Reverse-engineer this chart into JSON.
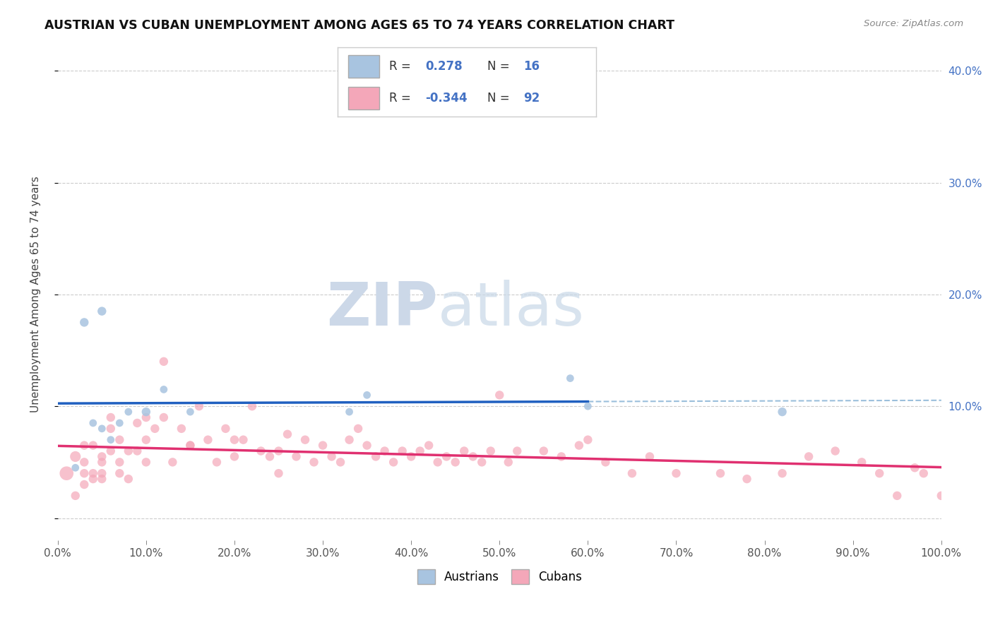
{
  "title": "AUSTRIAN VS CUBAN UNEMPLOYMENT AMONG AGES 65 TO 74 YEARS CORRELATION CHART",
  "source": "Source: ZipAtlas.com",
  "ylabel": "Unemployment Among Ages 65 to 74 years",
  "xlim": [
    0,
    1.0
  ],
  "ylim": [
    -0.02,
    0.42
  ],
  "xticks": [
    0.0,
    0.1,
    0.2,
    0.3,
    0.4,
    0.5,
    0.6,
    0.7,
    0.8,
    0.9,
    1.0
  ],
  "xticklabels": [
    "0.0%",
    "10.0%",
    "20.0%",
    "30.0%",
    "40.0%",
    "50.0%",
    "60.0%",
    "70.0%",
    "80.0%",
    "90.0%",
    "100.0%"
  ],
  "yticks": [
    0.0,
    0.1,
    0.2,
    0.3,
    0.4
  ],
  "yticklabels_left": [
    "",
    "",
    "",
    "",
    ""
  ],
  "yticklabels_right": [
    "",
    "10.0%",
    "20.0%",
    "30.0%",
    "40.0%"
  ],
  "austrian_R": 0.278,
  "austrian_N": 16,
  "cuban_R": -0.344,
  "cuban_N": 92,
  "austrian_color": "#a8c4e0",
  "cuban_color": "#f4a7b9",
  "trendline_austrian_color": "#2060c0",
  "trendline_cuban_color": "#e03070",
  "dashed_line_color": "#90b8d8",
  "background_color": "#ffffff",
  "grid_color": "#cccccc",
  "watermark_color": "#ccd8e8",
  "legend_label_austrian": "Austrians",
  "legend_label_cuban": "Cubans",
  "austrian_x": [
    0.02,
    0.03,
    0.04,
    0.05,
    0.05,
    0.06,
    0.07,
    0.08,
    0.1,
    0.12,
    0.15,
    0.33,
    0.35,
    0.58,
    0.6,
    0.82
  ],
  "austrian_y": [
    0.045,
    0.175,
    0.085,
    0.08,
    0.185,
    0.07,
    0.085,
    0.095,
    0.095,
    0.115,
    0.095,
    0.095,
    0.11,
    0.125,
    0.1,
    0.095
  ],
  "austrian_size": [
    60,
    80,
    60,
    60,
    80,
    60,
    60,
    60,
    80,
    60,
    60,
    60,
    60,
    60,
    60,
    80
  ],
  "cuban_x": [
    0.01,
    0.02,
    0.02,
    0.03,
    0.03,
    0.03,
    0.03,
    0.04,
    0.04,
    0.04,
    0.05,
    0.05,
    0.05,
    0.05,
    0.06,
    0.06,
    0.06,
    0.07,
    0.07,
    0.07,
    0.08,
    0.08,
    0.09,
    0.09,
    0.1,
    0.1,
    0.1,
    0.11,
    0.12,
    0.12,
    0.13,
    0.14,
    0.15,
    0.15,
    0.16,
    0.17,
    0.18,
    0.19,
    0.2,
    0.2,
    0.21,
    0.22,
    0.23,
    0.24,
    0.25,
    0.25,
    0.26,
    0.27,
    0.28,
    0.29,
    0.3,
    0.31,
    0.32,
    0.33,
    0.34,
    0.35,
    0.36,
    0.37,
    0.38,
    0.39,
    0.4,
    0.41,
    0.42,
    0.43,
    0.44,
    0.45,
    0.46,
    0.47,
    0.48,
    0.49,
    0.5,
    0.51,
    0.52,
    0.55,
    0.57,
    0.59,
    0.6,
    0.62,
    0.65,
    0.67,
    0.7,
    0.75,
    0.78,
    0.82,
    0.85,
    0.88,
    0.91,
    0.93,
    0.95,
    0.97,
    0.98,
    1.0
  ],
  "cuban_y": [
    0.04,
    0.055,
    0.02,
    0.04,
    0.05,
    0.03,
    0.065,
    0.04,
    0.035,
    0.065,
    0.05,
    0.04,
    0.055,
    0.035,
    0.08,
    0.09,
    0.06,
    0.07,
    0.05,
    0.04,
    0.06,
    0.035,
    0.085,
    0.06,
    0.09,
    0.07,
    0.05,
    0.08,
    0.14,
    0.09,
    0.05,
    0.08,
    0.065,
    0.065,
    0.1,
    0.07,
    0.05,
    0.08,
    0.07,
    0.055,
    0.07,
    0.1,
    0.06,
    0.055,
    0.06,
    0.04,
    0.075,
    0.055,
    0.07,
    0.05,
    0.065,
    0.055,
    0.05,
    0.07,
    0.08,
    0.065,
    0.055,
    0.06,
    0.05,
    0.06,
    0.055,
    0.06,
    0.065,
    0.05,
    0.055,
    0.05,
    0.06,
    0.055,
    0.05,
    0.06,
    0.11,
    0.05,
    0.06,
    0.06,
    0.055,
    0.065,
    0.07,
    0.05,
    0.04,
    0.055,
    0.04,
    0.04,
    0.035,
    0.04,
    0.055,
    0.06,
    0.05,
    0.04,
    0.02,
    0.045,
    0.04,
    0.02
  ],
  "cuban_size": [
    200,
    120,
    80,
    80,
    80,
    80,
    80,
    80,
    80,
    80,
    80,
    80,
    80,
    80,
    80,
    80,
    80,
    80,
    80,
    80,
    80,
    80,
    80,
    80,
    80,
    80,
    80,
    80,
    80,
    80,
    80,
    80,
    80,
    80,
    80,
    80,
    80,
    80,
    80,
    80,
    80,
    80,
    80,
    80,
    80,
    80,
    80,
    80,
    80,
    80,
    80,
    80,
    80,
    80,
    80,
    80,
    80,
    80,
    80,
    80,
    80,
    80,
    80,
    80,
    80,
    80,
    80,
    80,
    80,
    80,
    80,
    80,
    80,
    80,
    80,
    80,
    80,
    80,
    80,
    80,
    80,
    80,
    80,
    80,
    80,
    80,
    80,
    80,
    80,
    80,
    80,
    80
  ],
  "austrian_trend_x_solid_start": 0.0,
  "austrian_trend_x_solid_end": 0.6,
  "austrian_trend_x_dashed_start": 0.0,
  "austrian_trend_x_dashed_end": 1.0
}
